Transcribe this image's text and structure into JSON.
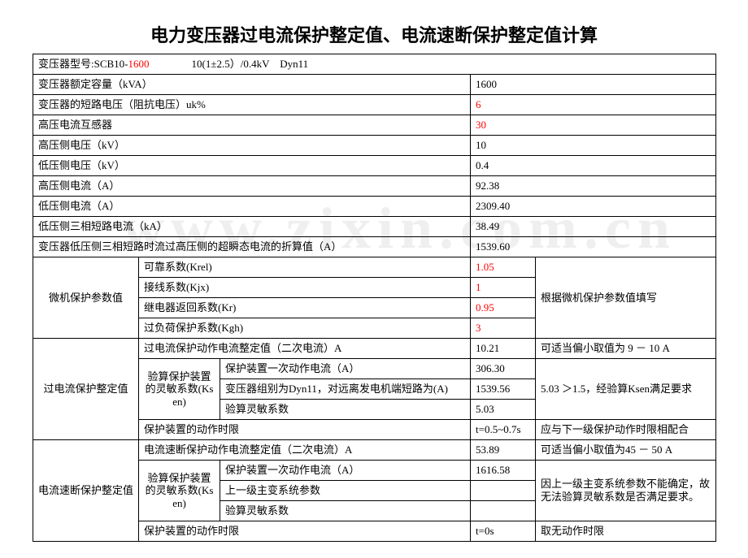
{
  "title": "电力变压器过电流保护整定值、电流速断保护整定值计算",
  "watermark": "www.zixin.com.cn",
  "model_row": {
    "label": "变压器型号:SCB10-",
    "red": "1600",
    "tail": "10(1±2.5）/0.4kV　Dyn11"
  },
  "rows_simple": [
    {
      "label": "变压器额定容量（kVA）",
      "value": "1600"
    },
    {
      "label": "变压器的短路电压（阻抗电压）uk%",
      "value": "6",
      "red": true
    },
    {
      "label": "高压电流互感器",
      "value": "30",
      "red": true
    },
    {
      "label": "高压侧电压（kV）",
      "value": "10"
    },
    {
      "label": "低压侧电压（kV）",
      "value": "0.4"
    },
    {
      "label": "高压侧电流（A）",
      "value": "92.38"
    },
    {
      "label": "低压侧电流（A）",
      "value": "2309.40"
    },
    {
      "label": "低压侧三相短路电流（kA）",
      "value": "38.49"
    },
    {
      "label": "变压器低压侧三相短路时流过高压侧的超瞬态电流的折算值（A）",
      "value": "1539.60"
    }
  ],
  "micro": {
    "group_label": "微机保护参数值",
    "rows": [
      {
        "label": "可靠系数(Krel)",
        "value": "1.05"
      },
      {
        "label": "接线系数(Kjx)",
        "value": "1"
      },
      {
        "label": "继电器返回系数(Kr)",
        "value": "0.95"
      },
      {
        "label": "过负荷保护系数(Kgh)",
        "value": "3"
      }
    ],
    "note": "根据微机保护参数值填写"
  },
  "overcurrent": {
    "group_label": "过电流保护整定值",
    "row1": {
      "label": "过电流保护动作电流整定值（二次电流）A",
      "value": "10.21",
      "note": "可适当偏小取值为 9 － 10 A"
    },
    "verify_label": "验算保护装置的灵敏系数(Ksen)",
    "r_a": {
      "label": "保护装置一次动作电流（A）",
      "value": "306.30"
    },
    "r_b": {
      "label": "变压器组别为Dyn11，对远离发电机端短路为(A)",
      "value": "1539.56"
    },
    "r_c": {
      "label": "验算灵敏系数",
      "value": "5.03"
    },
    "note_right": "5.03 ＞1.5，经验算Ksen满足要求",
    "time_row": {
      "label": "保护装置的动作时限",
      "value": "t=0.5~0.7s",
      "note": "应与下一级保护动作时限相配合"
    }
  },
  "quickbreak": {
    "group_label": "电流速断保护整定值",
    "row1": {
      "label": "电流速断保护动作电流整定值（二次电流）A",
      "value": "53.89",
      "note": "可适当偏小取值为45 － 50 A"
    },
    "verify_label": "验算保护装置的灵敏系数(Ksen)",
    "r_a": {
      "label": "保护装置一次动作电流（A）",
      "value": "1616.58"
    },
    "r_b": {
      "label": "上一级主变系统参数",
      "value": ""
    },
    "r_c": {
      "label": "验算灵敏系数",
      "value": ""
    },
    "note_right": "因上一级主变系统参数不能确定，故无法验算灵敏系数是否满足要求。",
    "time_row": {
      "label": "保护装置的动作时限",
      "value": "t=0s",
      "note": "取无动作时限"
    }
  }
}
